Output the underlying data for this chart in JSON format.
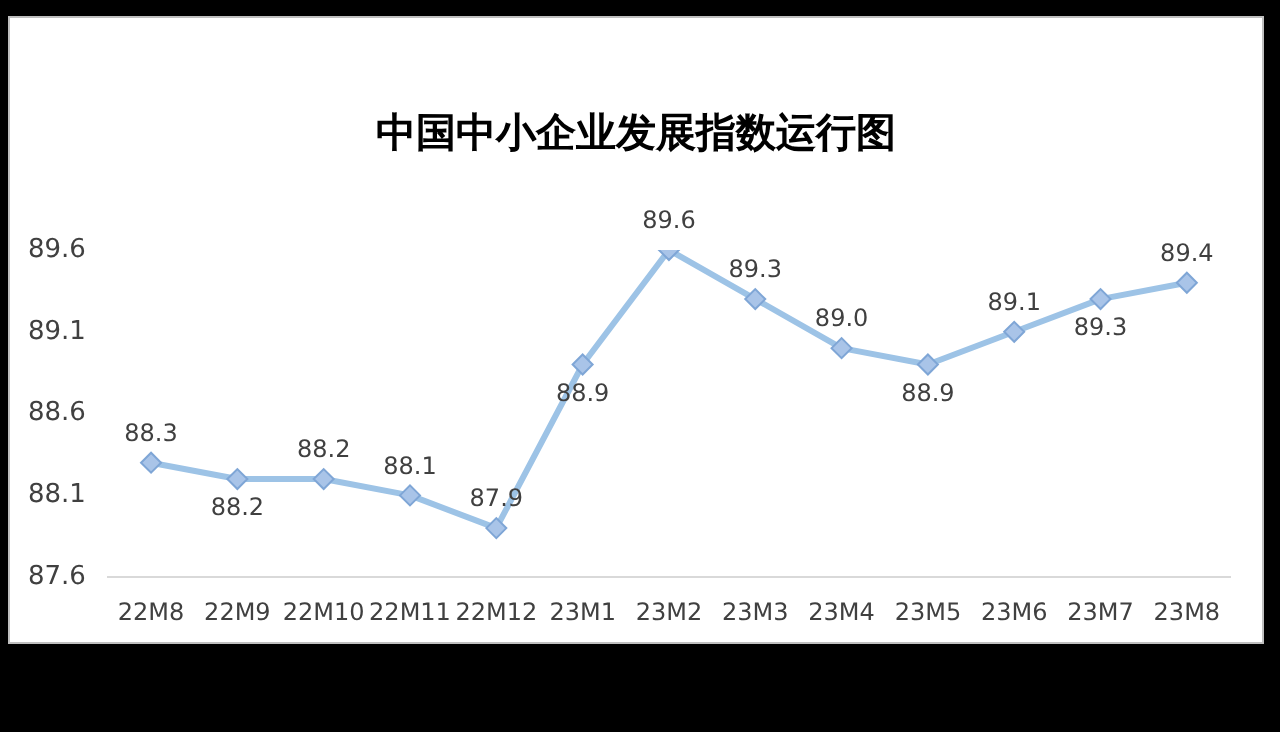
{
  "chart_data": {
    "type": "line",
    "title": "中国中小企业发展指数运行图",
    "categories": [
      "22M8",
      "22M9",
      "22M10",
      "22M11",
      "22M12",
      "23M1",
      "23M2",
      "23M3",
      "23M4",
      "23M5",
      "23M6",
      "23M7",
      "23M8"
    ],
    "series": [
      {
        "color": "#9dc3e6",
        "values": [
          88.3,
          88.2,
          88.2,
          88.1,
          87.9,
          88.9,
          89.6,
          89.3,
          89.0,
          88.9,
          89.1,
          89.3,
          89.4
        ],
        "value_labels": [
          "88.3",
          "88.2",
          "88.2",
          "88.1",
          "87.9",
          "88.9",
          "89.6",
          "89.3",
          "89.0",
          "88.9",
          "89.1",
          "89.3",
          "89.4"
        ]
      }
    ],
    "ylim": [
      87.6,
      89.6
    ],
    "yticks": [
      87.6,
      88.1,
      88.6,
      89.1,
      89.6
    ],
    "grid": false,
    "legend": false,
    "marker": "diamond",
    "line_style": "solid"
  }
}
